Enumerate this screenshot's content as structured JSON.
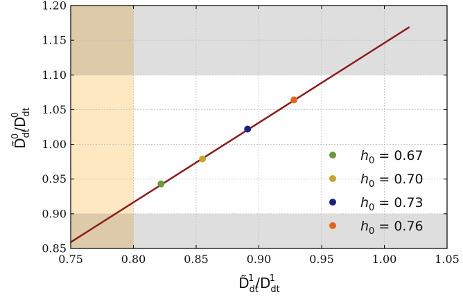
{
  "chart_data": {
    "type": "scatter",
    "title": "",
    "xlabel": {
      "base": "D̃",
      "sub": "dt",
      "sup": "1",
      "sep": "/",
      "base2": "D",
      "sub2": "dt",
      "sup2": "1"
    },
    "ylabel": {
      "base": "D̃",
      "sub": "dt",
      "sup": "0",
      "sep": "/",
      "base2": "D",
      "sub2": "dt",
      "sup2": "0"
    },
    "xlim": [
      0.75,
      1.05
    ],
    "ylim": [
      0.85,
      1.2
    ],
    "xticks": [
      "0.75",
      "0.80",
      "0.85",
      "0.90",
      "0.95",
      "1.00",
      "1.05"
    ],
    "yticks": [
      "0.85",
      "0.90",
      "0.95",
      "1.00",
      "1.05",
      "1.10",
      "1.15",
      "1.20"
    ],
    "grid": true,
    "shaded_bands": [
      {
        "axis": "x",
        "range": [
          0.75,
          0.8
        ],
        "color": "#fde8c2"
      },
      {
        "axis": "y",
        "range": [
          0.85,
          0.9
        ],
        "color": "#dedede"
      },
      {
        "axis": "y",
        "range": [
          1.1,
          1.2
        ],
        "color": "#dedede"
      }
    ],
    "line": {
      "x": [
        0.75,
        1.02
      ],
      "y": [
        0.859,
        1.169
      ],
      "color": "#8b1a1a"
    },
    "series": [
      {
        "name": "h₀ = 0.67",
        "label_base": "h",
        "label_sub": "0",
        "label_rest": " = 0.67",
        "x": [
          0.822
        ],
        "y": [
          0.943
        ],
        "color": "#6a9a3a"
      },
      {
        "name": "h₀ = 0.70",
        "label_base": "h",
        "label_sub": "0",
        "label_rest": " = 0.70",
        "x": [
          0.855
        ],
        "y": [
          0.979
        ],
        "color": "#c9a232"
      },
      {
        "name": "h₀ = 0.73",
        "label_base": "h",
        "label_sub": "0",
        "label_rest": " = 0.73",
        "x": [
          0.891
        ],
        "y": [
          1.022
        ],
        "color": "#1f1f80"
      },
      {
        "name": "h₀ = 0.76",
        "label_base": "h",
        "label_sub": "0",
        "label_rest": " = 0.76",
        "x": [
          0.928
        ],
        "y": [
          1.064
        ],
        "color": "#e0661c"
      }
    ],
    "legend": "lower-right"
  }
}
